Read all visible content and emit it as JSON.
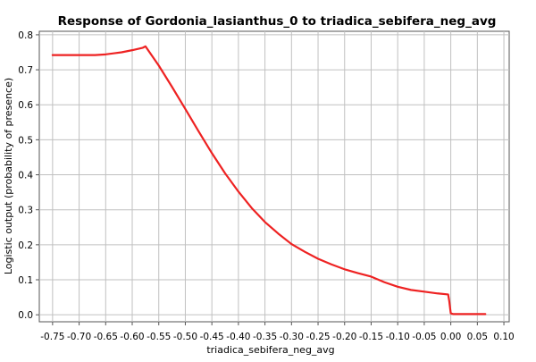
{
  "chart_data": {
    "type": "line",
    "title": "Response of Gordonia_lasianthus_0 to triadica_sebifera_neg_avg",
    "xlabel": "triadica_sebifera_neg_avg",
    "ylabel": "Logistic output (probability of presence)",
    "xlim": [
      -0.775,
      0.11
    ],
    "ylim": [
      -0.02,
      0.81
    ],
    "x_ticks": [
      -0.75,
      -0.7,
      -0.65,
      -0.6,
      -0.55,
      -0.5,
      -0.45,
      -0.4,
      -0.35,
      -0.3,
      -0.25,
      -0.2,
      -0.15,
      -0.1,
      -0.05,
      0.0,
      0.05,
      0.1
    ],
    "x_tick_labels": [
      "-0.75",
      "-0.70",
      "-0.65",
      "-0.60",
      "-0.55",
      "-0.50",
      "-0.45",
      "-0.40",
      "-0.35",
      "-0.30",
      "-0.25",
      "-0.20",
      "-0.15",
      "-0.10",
      "-0.05",
      "0.00",
      "0.05",
      "0.10"
    ],
    "y_ticks": [
      0.0,
      0.1,
      0.2,
      0.3,
      0.4,
      0.5,
      0.6,
      0.7,
      0.8
    ],
    "y_tick_labels": [
      "0.0",
      "0.1",
      "0.2",
      "0.3",
      "0.4",
      "0.5",
      "0.6",
      "0.7",
      "0.8"
    ],
    "grid": true,
    "series": [
      {
        "color": "#ee2222",
        "x": [
          -0.75,
          -0.7,
          -0.67,
          -0.65,
          -0.62,
          -0.6,
          -0.58,
          -0.575,
          -0.55,
          -0.525,
          -0.5,
          -0.475,
          -0.45,
          -0.425,
          -0.4,
          -0.375,
          -0.35,
          -0.325,
          -0.3,
          -0.275,
          -0.25,
          -0.225,
          -0.2,
          -0.175,
          -0.15,
          -0.125,
          -0.1,
          -0.075,
          -0.05,
          -0.025,
          -0.005,
          -0.003,
          -0.001,
          0.0,
          0.005,
          0.02,
          0.04,
          0.065
        ],
        "y": [
          0.742,
          0.742,
          0.742,
          0.744,
          0.75,
          0.756,
          0.763,
          0.767,
          0.712,
          0.651,
          0.588,
          0.524,
          0.462,
          0.404,
          0.352,
          0.305,
          0.265,
          0.232,
          0.202,
          0.18,
          0.16,
          0.144,
          0.13,
          0.119,
          0.109,
          0.093,
          0.08,
          0.071,
          0.066,
          0.061,
          0.058,
          0.04,
          0.015,
          0.004,
          0.002,
          0.002,
          0.002,
          0.002
        ]
      }
    ]
  }
}
